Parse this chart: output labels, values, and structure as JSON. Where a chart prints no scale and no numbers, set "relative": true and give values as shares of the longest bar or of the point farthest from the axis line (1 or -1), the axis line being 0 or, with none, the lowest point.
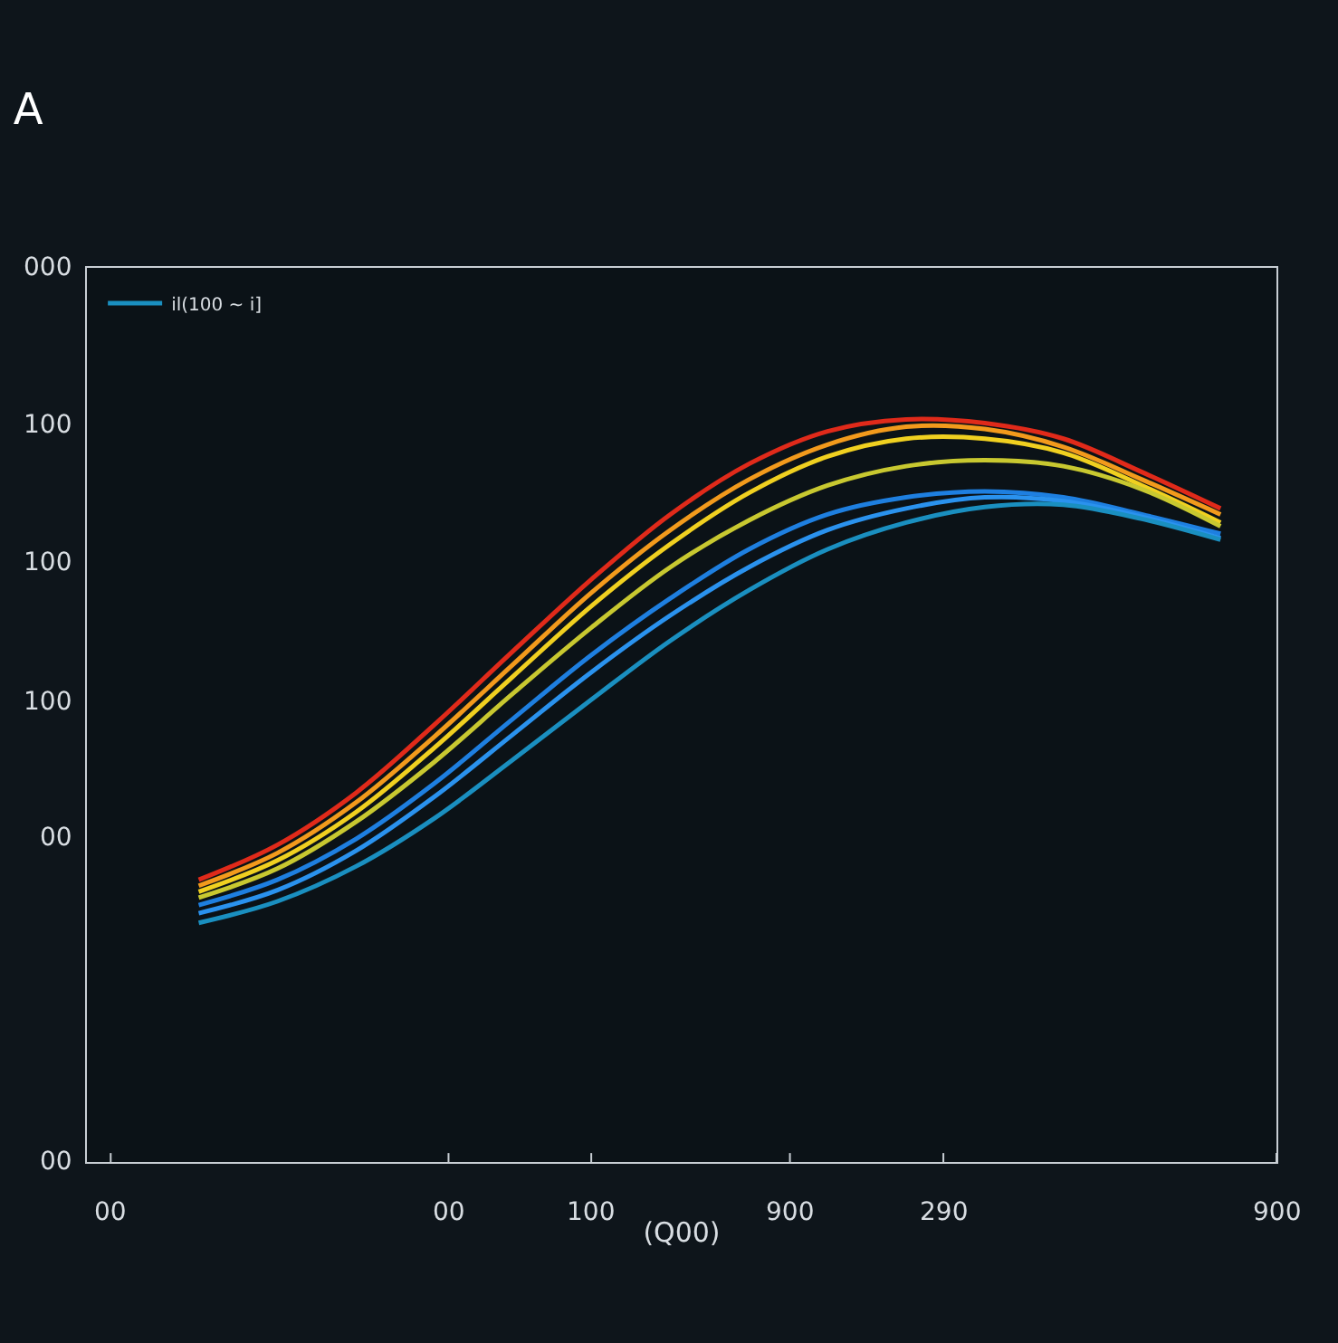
{
  "chart_data": {
    "type": "line",
    "title": "A",
    "xlabel": "(Q00)",
    "relative": true,
    "categories": [
      null,
      null,
      null,
      null,
      null,
      null,
      null,
      null,
      null,
      null,
      null,
      null,
      null,
      null
    ],
    "annotations": [
      "00",
      "00",
      "100",
      "900",
      "290",
      "900",
      "000",
      "100",
      "100",
      "100",
      "00",
      "00"
    ],
    "legend": "top left",
    "marker": "none",
    "line_style": "solid",
    "series": [
      {
        "color": "#e02a1a",
        "values": [
          0.38,
          0.427,
          0.497,
          0.589,
          0.688,
          0.785,
          0.872,
          0.94,
          0.984,
          1.0,
          0.995,
          0.974,
          0.929,
          0.88
        ]
      },
      {
        "color": "#f29a1c",
        "values": [
          0.372,
          0.416,
          0.484,
          0.573,
          0.67,
          0.767,
          0.851,
          0.919,
          0.966,
          0.99,
          0.987,
          0.963,
          0.919,
          0.872
        ]
      },
      {
        "color": "#f0d020",
        "values": [
          0.364,
          0.406,
          0.471,
          0.558,
          0.654,
          0.749,
          0.832,
          0.901,
          0.95,
          0.974,
          0.974,
          0.955,
          0.911,
          0.861
        ]
      },
      {
        "color": "#c8c830",
        "values": [
          0.356,
          0.395,
          0.458,
          0.539,
          0.631,
          0.72,
          0.801,
          0.864,
          0.911,
          0.937,
          0.945,
          0.937,
          0.906,
          0.856
        ]
      },
      {
        "color": "#1e7fe0",
        "values": [
          0.346,
          0.38,
          0.435,
          0.51,
          0.597,
          0.683,
          0.759,
          0.825,
          0.872,
          0.895,
          0.903,
          0.895,
          0.872,
          0.846
        ]
      },
      {
        "color": "#2a92ee",
        "values": [
          0.335,
          0.366,
          0.419,
          0.492,
          0.576,
          0.66,
          0.736,
          0.801,
          0.851,
          0.88,
          0.895,
          0.89,
          0.869,
          0.84
        ]
      },
      {
        "name": "il(100 ~ i]",
        "color": "#1a8fc0",
        "values": [
          0.322,
          0.351,
          0.398,
          0.463,
          0.542,
          0.623,
          0.702,
          0.77,
          0.825,
          0.861,
          0.882,
          0.885,
          0.866,
          0.838
        ]
      }
    ]
  }
}
